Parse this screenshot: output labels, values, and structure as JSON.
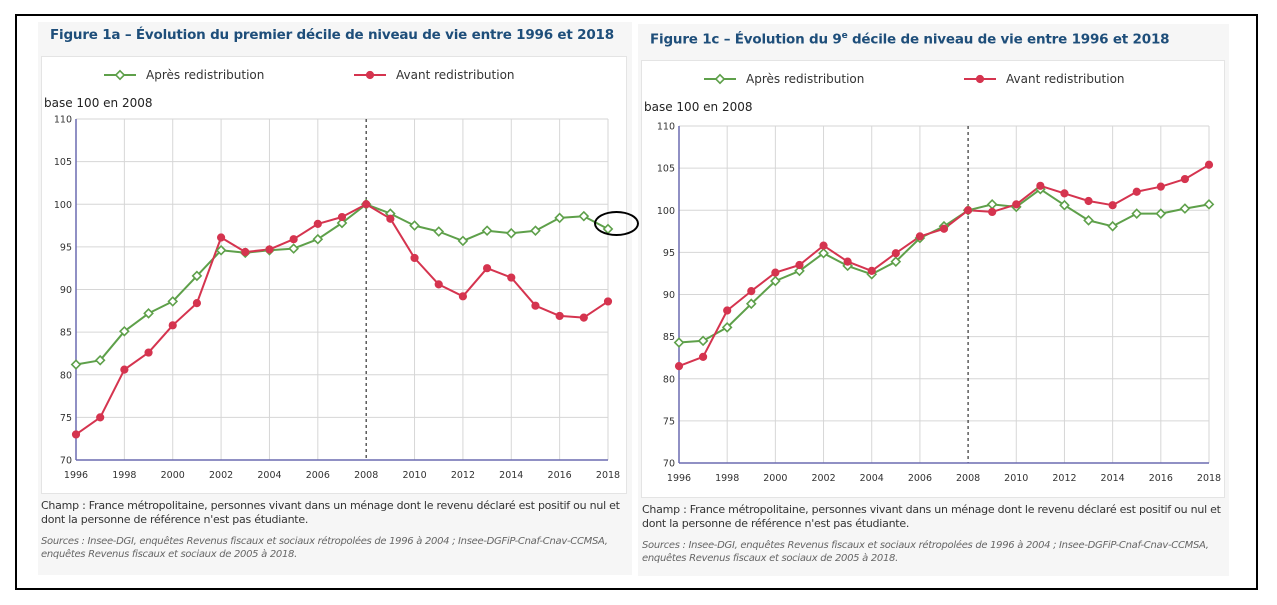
{
  "colors": {
    "title": "#1e4e7a",
    "apres": "#5ea04a",
    "avant": "#d5344f",
    "grid": "#d6d6d6",
    "axis": "#6b6bb0"
  },
  "chart_data": [
    {
      "id": "fig1a",
      "type": "line",
      "title": "Figure 1a – Évolution du premier décile de niveau de vie entre 1996 et 2018",
      "ylabel": "base 100 en 2008",
      "xlabel": "",
      "ylim": [
        70,
        110
      ],
      "yticks": [
        "70",
        "75",
        "80",
        "85",
        "90",
        "95",
        "100",
        "105",
        "110"
      ],
      "xticks": [
        "1996",
        "1998",
        "2000",
        "2002",
        "2004",
        "2006",
        "2008",
        "2010",
        "2012",
        "2014",
        "2016",
        "2018"
      ],
      "grid": true,
      "legend_position": "top",
      "reference_line_x": 2008,
      "x": [
        1996,
        1997,
        1998,
        1999,
        2000,
        2001,
        2002,
        2003,
        2004,
        2005,
        2006,
        2007,
        2008,
        2009,
        2010,
        2011,
        2012,
        2013,
        2014,
        2015,
        2016,
        2017,
        2018
      ],
      "series": [
        {
          "name": "Après redistribution",
          "marker": "open-diamond",
          "values": [
            81.2,
            81.7,
            85.1,
            87.2,
            88.6,
            91.6,
            94.6,
            94.3,
            94.6,
            94.8,
            95.9,
            97.8,
            100,
            98.9,
            97.5,
            96.8,
            95.7,
            96.9,
            96.6,
            96.9,
            98.4,
            98.6,
            97.1
          ]
        },
        {
          "name": "Avant redistribution",
          "marker": "filled-circle",
          "values": [
            73.0,
            75.0,
            80.6,
            82.6,
            85.8,
            88.4,
            96.1,
            94.4,
            94.7,
            95.9,
            97.7,
            98.5,
            100,
            98.3,
            93.7,
            90.6,
            89.2,
            92.5,
            91.4,
            88.1,
            86.9,
            86.7,
            88.6
          ]
        }
      ],
      "note": "Champ : France métropolitaine, personnes vivant dans un ménage dont le revenu déclaré est positif ou nul et dont la personne de référence n'est pas étudiante.",
      "sources": "Sources : Insee-DGI, enquêtes Revenus fiscaux et sociaux rétropolées de 1996 à 2004 ; Insee-DGFiP-Cnaf-Cnav-CCMSA, enquêtes Revenus fiscaux et sociaux de 2005 à 2018.",
      "annotation": "ellipse around 2018 Après redistribution point"
    },
    {
      "id": "fig1c",
      "type": "line",
      "title": "Figure 1c – Évolution du 9e décile de niveau de vie entre 1996 et 2018",
      "title_parts": {
        "pre": "Figure 1c – Évolution du 9",
        "sup": "e",
        "post": " décile de niveau de vie entre 1996 et 2018"
      },
      "ylabel": "base 100 en 2008",
      "xlabel": "",
      "ylim": [
        70,
        110
      ],
      "yticks": [
        "70",
        "75",
        "80",
        "85",
        "90",
        "95",
        "100",
        "105",
        "110"
      ],
      "xticks": [
        "1996",
        "1998",
        "2000",
        "2002",
        "2004",
        "2006",
        "2008",
        "2010",
        "2012",
        "2014",
        "2016",
        "2018"
      ],
      "grid": true,
      "legend_position": "top",
      "reference_line_x": 2008,
      "x": [
        1996,
        1997,
        1998,
        1999,
        2000,
        2001,
        2002,
        2003,
        2004,
        2005,
        2006,
        2007,
        2008,
        2009,
        2010,
        2011,
        2012,
        2013,
        2014,
        2015,
        2016,
        2017,
        2018
      ],
      "series": [
        {
          "name": "Après redistribution",
          "marker": "open-diamond",
          "values": [
            84.3,
            84.5,
            86.1,
            88.9,
            91.6,
            92.8,
            94.9,
            93.4,
            92.4,
            93.9,
            96.7,
            98.1,
            100,
            100.7,
            100.4,
            102.5,
            100.6,
            98.8,
            98.1,
            99.6,
            99.6,
            100.2,
            100.7
          ]
        },
        {
          "name": "Avant redistribution",
          "marker": "filled-circle",
          "values": [
            81.5,
            82.6,
            88.1,
            90.4,
            92.6,
            93.5,
            95.8,
            93.9,
            92.8,
            94.9,
            96.9,
            97.8,
            100,
            99.8,
            100.7,
            102.9,
            102.0,
            101.1,
            100.6,
            102.2,
            102.8,
            103.7,
            105.4
          ]
        }
      ],
      "note": "Champ : France métropolitaine, personnes vivant dans un ménage dont le revenu déclaré est positif ou nul et dont la personne de référence n'est pas étudiante.",
      "sources": "Sources : Insee-DGI, enquêtes Revenus fiscaux et sociaux rétropolées de 1996 à 2004 ; Insee-DGFiP-Cnaf-Cnav-CCMSA, enquêtes Revenus fiscaux et sociaux de 2005 à 2018."
    }
  ]
}
